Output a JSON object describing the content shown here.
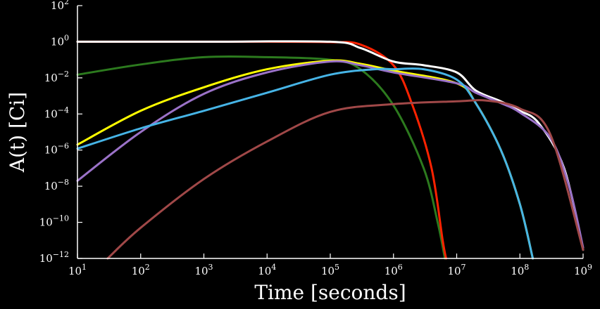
{
  "chart_data": {
    "type": "line",
    "title": "",
    "xlabel": "Time [seconds]",
    "ylabel": "A(t) [Ci]",
    "x_scale": "log",
    "y_scale": "log",
    "xlim": [
      10,
      1000000000
    ],
    "ylim": [
      1e-12,
      100
    ],
    "grid": false,
    "legend": "none",
    "x_ticks": [
      {
        "base": "10",
        "exp": "1"
      },
      {
        "base": "10",
        "exp": "2"
      },
      {
        "base": "10",
        "exp": "3"
      },
      {
        "base": "10",
        "exp": "4"
      },
      {
        "base": "10",
        "exp": "5"
      },
      {
        "base": "10",
        "exp": "6"
      },
      {
        "base": "10",
        "exp": "7"
      },
      {
        "base": "10",
        "exp": "8"
      },
      {
        "base": "10",
        "exp": "9"
      }
    ],
    "y_ticks": [
      {
        "base": "10",
        "exp": "2"
      },
      {
        "base": "10",
        "exp": "0"
      },
      {
        "base": "10",
        "exp": "−2"
      },
      {
        "base": "10",
        "exp": "−4"
      },
      {
        "base": "10",
        "exp": "−6"
      },
      {
        "base": "10",
        "exp": "−8"
      },
      {
        "base": "10",
        "exp": "−10"
      },
      {
        "base": "10",
        "exp": "−12"
      }
    ],
    "series": [
      {
        "color": "#2c7a1e",
        "points": [
          [
            10,
            0.015
          ],
          [
            100,
            0.055
          ],
          [
            1000,
            0.14
          ],
          [
            10000,
            0.14
          ],
          [
            100000,
            0.1
          ],
          [
            300000,
            0.03
          ],
          [
            1000000,
            0.0003
          ],
          [
            3000000,
            1e-07
          ],
          [
            5000000,
            1e-10
          ],
          [
            6500000,
            1e-12
          ]
        ]
      },
      {
        "color": "#ff2200",
        "points": [
          [
            10,
            1.0
          ],
          [
            1000,
            1.0
          ],
          [
            10000,
            1.0
          ],
          [
            100000,
            0.95
          ],
          [
            300000,
            0.7
          ],
          [
            1000000,
            0.05
          ],
          [
            2000000,
            0.0003
          ],
          [
            4000000,
            1e-07
          ],
          [
            6000000,
            1e-11
          ],
          [
            6800000,
            1e-12
          ]
        ]
      },
      {
        "color": "#ffffff",
        "points": [
          [
            10,
            1.0
          ],
          [
            1000,
            1.0
          ],
          [
            100000,
            1.0
          ],
          [
            300000,
            0.45
          ],
          [
            1000000,
            0.08
          ],
          [
            3000000,
            0.05
          ],
          [
            10000000,
            0.02
          ],
          [
            20000000,
            0.002
          ],
          [
            50000000,
            0.0005
          ],
          [
            100000000,
            0.00015
          ],
          [
            200000000,
            3e-05
          ],
          [
            500000000,
            1e-07
          ],
          [
            1000000000,
            3e-12
          ]
        ]
      },
      {
        "color": "#ffff00",
        "points": [
          [
            10,
            2e-06
          ],
          [
            100,
            0.00015
          ],
          [
            1000,
            0.003
          ],
          [
            10000,
            0.03
          ],
          [
            100000,
            0.09
          ],
          [
            300000,
            0.06
          ],
          [
            1000000,
            0.025
          ],
          [
            10000000,
            0.005
          ],
          [
            20000000,
            0.0004
          ],
          [
            50000000,
            1e-06
          ],
          [
            100000000,
            1e-09
          ],
          [
            160000000,
            1e-12
          ]
        ]
      },
      {
        "color": "#9b72c8",
        "points": [
          [
            10,
            2e-08
          ],
          [
            100,
            1e-05
          ],
          [
            1000,
            0.0013
          ],
          [
            10000,
            0.02
          ],
          [
            100000,
            0.08
          ],
          [
            300000,
            0.05
          ],
          [
            1000000,
            0.02
          ],
          [
            10000000,
            0.005
          ],
          [
            20000000,
            0.0015
          ],
          [
            50000000,
            0.0004
          ],
          [
            100000000,
            0.00012
          ],
          [
            300000000,
            5e-06
          ],
          [
            600000000,
            1e-08
          ],
          [
            1000000000,
            4e-12
          ]
        ]
      },
      {
        "color": "#46b4e6",
        "points": [
          [
            10,
            1.2e-06
          ],
          [
            100,
            1.6e-05
          ],
          [
            1000,
            0.00015
          ],
          [
            10000,
            0.0015
          ],
          [
            100000,
            0.015
          ],
          [
            500000,
            0.03
          ],
          [
            1000000,
            0.03
          ],
          [
            3000000,
            0.03
          ],
          [
            10000000,
            0.008
          ],
          [
            20000000,
            0.0004
          ],
          [
            50000000,
            1e-06
          ],
          [
            100000000,
            1e-09
          ],
          [
            160000000,
            1e-12
          ]
        ]
      },
      {
        "color": "#a04848",
        "points": [
          [
            30,
            1e-12
          ],
          [
            100,
            5e-11
          ],
          [
            1000,
            2.5e-08
          ],
          [
            10000,
            3e-06
          ],
          [
            100000,
            0.00013
          ],
          [
            1000000,
            0.00035
          ],
          [
            10000000,
            0.0005
          ],
          [
            30000000,
            0.00055
          ],
          [
            100000000,
            0.0002
          ],
          [
            300000000,
            8e-06
          ],
          [
            1000000000,
            3e-12
          ]
        ]
      }
    ]
  }
}
